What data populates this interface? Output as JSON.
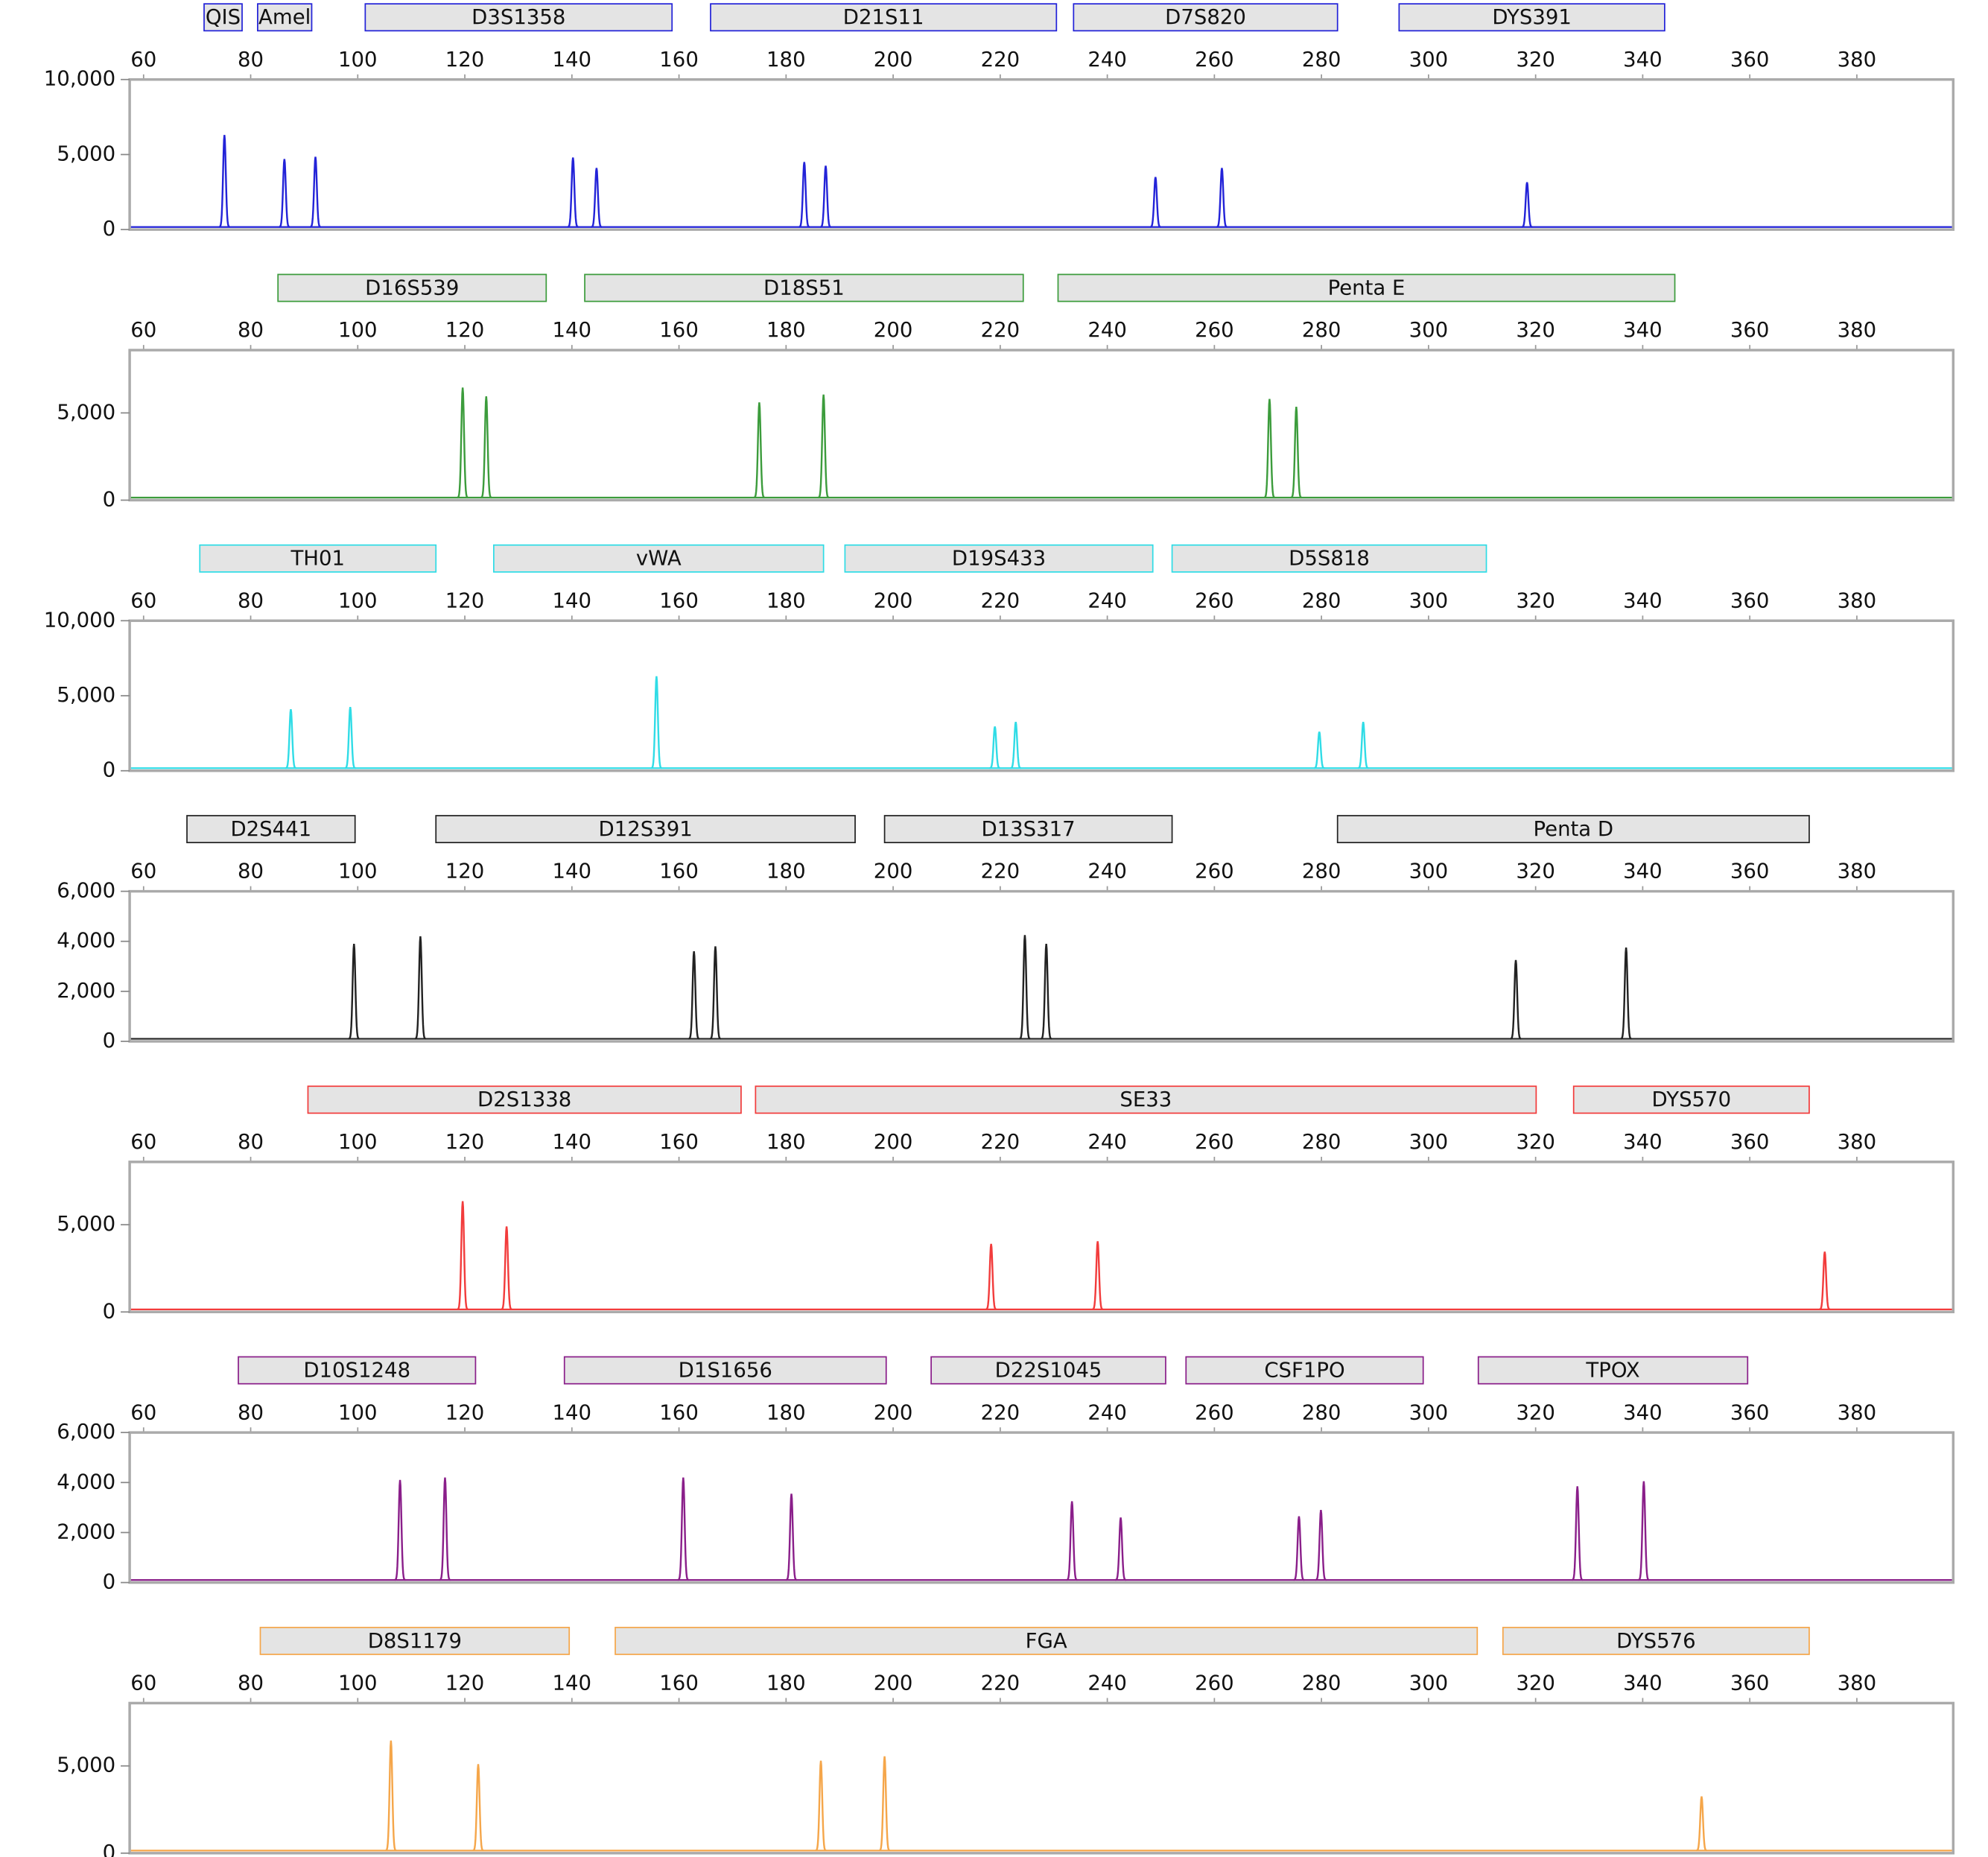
{
  "chart_data": [
    {
      "type": "line",
      "color": "#2323d8",
      "x": [
        75.1,
        86.3,
        92.1,
        140.2,
        144.6,
        183.4,
        187.4,
        249.0,
        261.4,
        318.4
      ],
      "values": [
        6300,
        4700,
        4850,
        4800,
        4100,
        4500,
        4250,
        3500,
        4100,
        3150
      ],
      "xlim": [
        57.4,
        398
      ],
      "xticks": [
        60,
        80,
        100,
        120,
        140,
        160,
        180,
        200,
        220,
        240,
        260,
        280,
        300,
        320,
        340,
        360,
        380
      ],
      "ylim": [
        0,
        10000
      ],
      "yticks": [
        0,
        {
          "value": 5000,
          "label": "5,000"
        },
        {
          "value": 10000,
          "label": "10,000"
        }
      ],
      "loci": [
        {
          "label": "QIS",
          "start": 71.3,
          "end": 78.4
        },
        {
          "label": "Amel",
          "start": 81.3,
          "end": 91.4
        },
        {
          "label": "D3S1358",
          "start": 101.4,
          "end": 158.7
        },
        {
          "label": "D21S11",
          "start": 165.9,
          "end": 230.5
        },
        {
          "label": "D7S820",
          "start": 233.7,
          "end": 283.0
        },
        {
          "label": "DYS391",
          "start": 294.5,
          "end": 344.1
        }
      ]
    },
    {
      "type": "line",
      "color": "#3c9c3c",
      "x": [
        119.6,
        124.0,
        175.0,
        187.0,
        270.3,
        275.3
      ],
      "values": [
        6450,
        5950,
        5600,
        6050,
        5800,
        5350
      ],
      "xlim": [
        57.4,
        398
      ],
      "xticks": [
        60,
        80,
        100,
        120,
        140,
        160,
        180,
        200,
        220,
        240,
        260,
        280,
        300,
        320,
        340,
        360,
        380
      ],
      "ylim": [
        0,
        8600
      ],
      "yticks": [
        0,
        {
          "value": 5000,
          "label": "5,000"
        }
      ],
      "loci": [
        {
          "label": "D16S539",
          "start": 85.1,
          "end": 135.2
        },
        {
          "label": "D18S51",
          "start": 142.4,
          "end": 224.3
        },
        {
          "label": "Penta E",
          "start": 230.8,
          "end": 346.0
        }
      ]
    },
    {
      "type": "line",
      "color": "#30dce6",
      "x": [
        87.5,
        98.6,
        155.8,
        219.0,
        222.9,
        279.6,
        287.8
      ],
      "values": [
        4100,
        4250,
        6300,
        2950,
        3250,
        2600,
        3250
      ],
      "xlim": [
        57.4,
        398
      ],
      "xticks": [
        60,
        80,
        100,
        120,
        140,
        160,
        180,
        200,
        220,
        240,
        260,
        280,
        300,
        320,
        340,
        360,
        380
      ],
      "ylim": [
        0,
        10000
      ],
      "yticks": [
        0,
        {
          "value": 5000,
          "label": "5,000"
        },
        {
          "value": 10000,
          "label": "10,000"
        }
      ],
      "loci": [
        {
          "label": "TH01",
          "start": 70.5,
          "end": 114.6
        },
        {
          "label": "vWA",
          "start": 125.4,
          "end": 187.0
        },
        {
          "label": "D19S433",
          "start": 191.0,
          "end": 248.5
        },
        {
          "label": "D5S818",
          "start": 252.1,
          "end": 310.8
        }
      ]
    },
    {
      "type": "line",
      "color": "#222222",
      "x": [
        99.3,
        111.7,
        162.8,
        166.8,
        224.6,
        228.6,
        316.3,
        336.9
      ],
      "values": [
        3900,
        4200,
        3600,
        3800,
        4250,
        3900,
        3250,
        3750
      ],
      "xlim": [
        57.4,
        398
      ],
      "xticks": [
        60,
        80,
        100,
        120,
        140,
        160,
        180,
        200,
        220,
        240,
        260,
        280,
        300,
        320,
        340,
        360,
        380
      ],
      "ylim": [
        0,
        6000
      ],
      "yticks": [
        0,
        {
          "value": 2000,
          "label": "2,000"
        },
        {
          "value": 4000,
          "label": "4,000"
        },
        {
          "value": 6000,
          "label": "6,000"
        }
      ],
      "loci": [
        {
          "label": "D2S441",
          "start": 68.1,
          "end": 99.5
        },
        {
          "label": "D12S391",
          "start": 114.6,
          "end": 192.9
        },
        {
          "label": "D13S317",
          "start": 198.4,
          "end": 252.1
        },
        {
          "label": "Penta D",
          "start": 283.0,
          "end": 371.1
        }
      ]
    },
    {
      "type": "line",
      "color": "#f23c3c",
      "x": [
        119.6,
        127.8,
        218.3,
        238.2,
        374.0
      ],
      "values": [
        6350,
        4900,
        3900,
        4050,
        3450
      ],
      "xlim": [
        57.4,
        398
      ],
      "xticks": [
        60,
        80,
        100,
        120,
        140,
        160,
        180,
        200,
        220,
        240,
        260,
        280,
        300,
        320,
        340,
        360,
        380
      ],
      "ylim": [
        0,
        8600
      ],
      "yticks": [
        0,
        {
          "value": 5000,
          "label": "5,000"
        }
      ],
      "loci": [
        {
          "label": "D2S1338",
          "start": 90.7,
          "end": 171.6
        },
        {
          "label": "SE33",
          "start": 174.3,
          "end": 320.1
        },
        {
          "label": "DYS570",
          "start": 327.1,
          "end": 371.1
        }
      ]
    },
    {
      "type": "line",
      "color": "#8a1f8a",
      "x": [
        107.9,
        116.3,
        160.8,
        181.0,
        233.4,
        242.5,
        275.8,
        279.9,
        327.8,
        340.2
      ],
      "values": [
        4100,
        4200,
        4200,
        3550,
        3250,
        2600,
        2650,
        2900,
        3850,
        4050
      ],
      "xlim": [
        57.4,
        398
      ],
      "xticks": [
        60,
        80,
        100,
        120,
        140,
        160,
        180,
        200,
        220,
        240,
        260,
        280,
        300,
        320,
        340,
        360,
        380
      ],
      "ylim": [
        0,
        6000
      ],
      "yticks": [
        0,
        {
          "value": 2000,
          "label": "2,000"
        },
        {
          "value": 4000,
          "label": "4,000"
        },
        {
          "value": 6000,
          "label": "6,000"
        }
      ],
      "loci": [
        {
          "label": "D10S1248",
          "start": 77.7,
          "end": 122.0
        },
        {
          "label": "D1S1656",
          "start": 138.6,
          "end": 198.7
        },
        {
          "label": "D22S1045",
          "start": 207.1,
          "end": 250.9
        },
        {
          "label": "CSF1PO",
          "start": 254.7,
          "end": 299.0
        },
        {
          "label": "TPOX",
          "start": 309.3,
          "end": 359.6
        }
      ]
    },
    {
      "type": "line",
      "color": "#f5a64a",
      "x": [
        106.2,
        122.5,
        186.5,
        198.4,
        351.0
      ],
      "values": [
        6450,
        5100,
        5300,
        5550,
        3250
      ],
      "xlim": [
        57.4,
        398
      ],
      "xticks": [
        60,
        80,
        100,
        120,
        140,
        160,
        180,
        200,
        220,
        240,
        260,
        280,
        300,
        320,
        340,
        360,
        380
      ],
      "ylim": [
        0,
        8600
      ],
      "yticks": [
        0,
        {
          "value": 5000,
          "label": "5,000"
        }
      ],
      "loci": [
        {
          "label": "D8S1179",
          "start": 81.8,
          "end": 139.5
        },
        {
          "label": "FGA",
          "start": 148.1,
          "end": 309.1
        },
        {
          "label": "DYS576",
          "start": 313.9,
          "end": 371.1
        }
      ]
    }
  ]
}
